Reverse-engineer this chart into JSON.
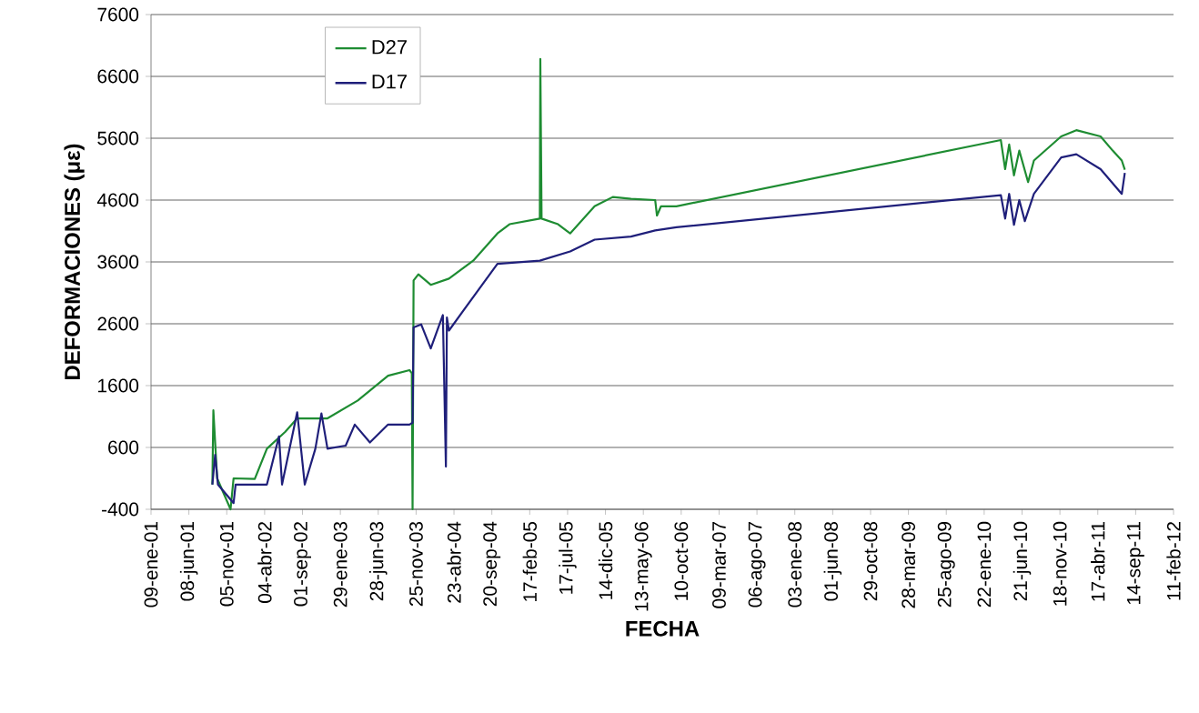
{
  "chart_data": {
    "type": "line",
    "xlabel": "FECHA",
    "ylabel": "DEFORMACIONES (με)",
    "ylim": [
      -400,
      7600
    ],
    "yticks": [
      -400,
      600,
      1600,
      2600,
      3600,
      4600,
      5600,
      6600,
      7600
    ],
    "xlim": [
      "2001-01-09",
      "2012-02-11"
    ],
    "xticks": [
      {
        "value": "2001-01-09",
        "label": "09-ene-01"
      },
      {
        "value": "2001-06-08",
        "label": "08-jun-01"
      },
      {
        "value": "2001-11-05",
        "label": "05-nov-01"
      },
      {
        "value": "2002-04-04",
        "label": "04-abr-02"
      },
      {
        "value": "2002-09-01",
        "label": "01-sep-02"
      },
      {
        "value": "2003-01-29",
        "label": "29-ene-03"
      },
      {
        "value": "2003-06-28",
        "label": "28-jun-03"
      },
      {
        "value": "2003-11-25",
        "label": "25-nov-03"
      },
      {
        "value": "2004-04-23",
        "label": "23-abr-04"
      },
      {
        "value": "2004-09-20",
        "label": "20-sep-04"
      },
      {
        "value": "2005-02-17",
        "label": "17-feb-05"
      },
      {
        "value": "2005-07-17",
        "label": "17-jul-05"
      },
      {
        "value": "2005-12-14",
        "label": "14-dic-05"
      },
      {
        "value": "2006-05-13",
        "label": "13-may-06"
      },
      {
        "value": "2006-10-10",
        "label": "10-oct-06"
      },
      {
        "value": "2007-03-09",
        "label": "09-mar-07"
      },
      {
        "value": "2007-08-06",
        "label": "06-ago-07"
      },
      {
        "value": "2008-01-03",
        "label": "03-ene-08"
      },
      {
        "value": "2008-06-01",
        "label": "01-jun-08"
      },
      {
        "value": "2008-10-29",
        "label": "29-oct-08"
      },
      {
        "value": "2009-03-28",
        "label": "28-mar-09"
      },
      {
        "value": "2009-08-25",
        "label": "25-ago-09"
      },
      {
        "value": "2010-01-22",
        "label": "22-ene-10"
      },
      {
        "value": "2010-06-21",
        "label": "21-jun-10"
      },
      {
        "value": "2010-11-18",
        "label": "18-nov-10"
      },
      {
        "value": "2011-04-17",
        "label": "17-abr-11"
      },
      {
        "value": "2011-09-14",
        "label": "14-sep-11"
      },
      {
        "value": "2012-02-11",
        "label": "11-feb-12"
      }
    ],
    "grid": "y",
    "legend": "top left",
    "marker": "none",
    "line_style": "solid",
    "series": [
      {
        "name": "D27",
        "color": "#1e8c32",
        "x": [
          "2001-09-09",
          "2001-09-13",
          "2001-09-28",
          "2001-11-20",
          "2001-12-02",
          "2002-02-24",
          "2002-04-13",
          "2002-06-24",
          "2002-08-11",
          "2002-12-09",
          "2003-04-08",
          "2003-08-06",
          "2003-10-30",
          "2003-11-08",
          "2003-11-11",
          "2003-11-15",
          "2003-12-04",
          "2004-01-22",
          "2004-04-03",
          "2004-07-08",
          "2004-10-12",
          "2004-11-29",
          "2005-03-29",
          "2005-03-31",
          "2005-04-05",
          "2005-06-09",
          "2005-07-27",
          "2005-11-01",
          "2006-01-12",
          "2006-03-25",
          "2006-06-29",
          "2006-07-06",
          "2006-07-22",
          "2006-09-21",
          "2010-03-29",
          "2010-04-15",
          "2010-05-01",
          "2010-05-20",
          "2010-06-10",
          "2010-07-15",
          "2010-08-07",
          "2010-11-23",
          "2011-01-22",
          "2011-04-28",
          "2011-06-15",
          "2011-07-21",
          "2011-08-02"
        ],
        "values": [
          0,
          1200,
          100,
          -400,
          100,
          90,
          580,
          850,
          1070,
          1070,
          1360,
          1760,
          1850,
          1800,
          -400,
          3300,
          3400,
          3230,
          3330,
          3620,
          4060,
          4210,
          4300,
          6880,
          4300,
          4210,
          4060,
          4500,
          4650,
          4620,
          4600,
          4350,
          4500,
          4500,
          5570,
          5100,
          5500,
          5000,
          5400,
          4890,
          5240,
          5630,
          5730,
          5630,
          5400,
          5240,
          5090
        ]
      },
      {
        "name": "D17",
        "color": "#1f1f7a",
        "x": [
          "2001-09-09",
          "2001-09-20",
          "2001-10-01",
          "2001-12-02",
          "2001-12-10",
          "2002-04-13",
          "2002-05-31",
          "2002-06-12",
          "2002-08-11",
          "2002-09-10",
          "2002-10-22",
          "2002-11-15",
          "2002-12-09",
          "2003-02-19",
          "2003-03-27",
          "2003-05-26",
          "2003-08-06",
          "2003-10-30",
          "2003-11-11",
          "2003-11-15",
          "2003-12-15",
          "2004-01-22",
          "2004-03-10",
          "2004-03-22",
          "2004-03-26",
          "2004-04-03",
          "2004-07-08",
          "2004-10-12",
          "2005-03-29",
          "2005-07-27",
          "2005-11-01",
          "2006-03-25",
          "2006-06-29",
          "2006-09-21",
          "2010-03-29",
          "2010-04-15",
          "2010-05-01",
          "2010-05-20",
          "2010-06-10",
          "2010-07-02",
          "2010-08-07",
          "2010-11-23",
          "2011-01-22",
          "2011-04-28",
          "2011-07-21",
          "2011-08-02"
        ],
        "values": [
          0,
          480,
          0,
          -300,
          0,
          0,
          780,
          0,
          1170,
          0,
          580,
          1150,
          580,
          630,
          970,
          680,
          970,
          970,
          1000,
          2540,
          2590,
          2200,
          2740,
          290,
          2700,
          2490,
          3030,
          3570,
          3620,
          3770,
          3960,
          4010,
          4110,
          4160,
          4680,
          4300,
          4700,
          4200,
          4600,
          4260,
          4700,
          5290,
          5340,
          5100,
          4700,
          5040
        ]
      }
    ]
  }
}
